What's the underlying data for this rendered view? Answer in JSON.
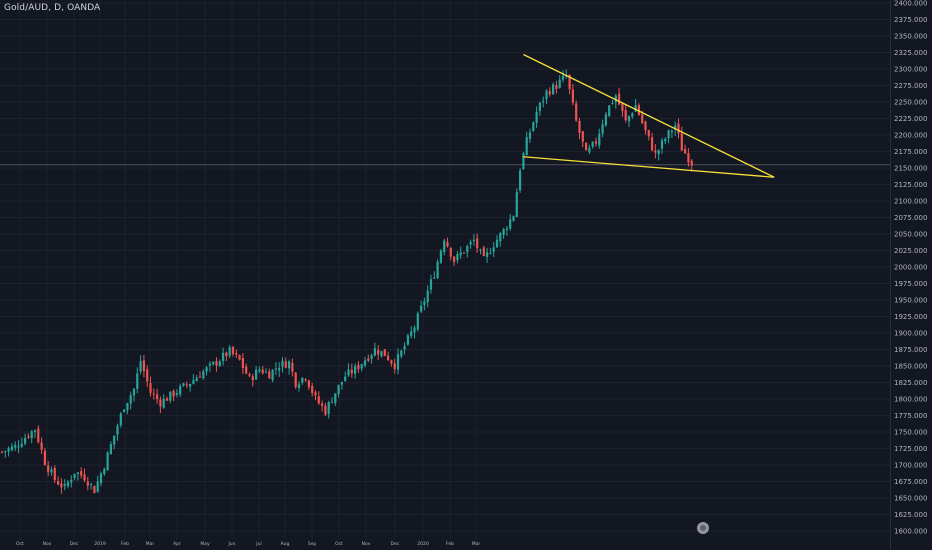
{
  "header": {
    "symbol_title": "Gold/AUD, D, OANDA"
  },
  "colors": {
    "background": "#131722",
    "grid": "#1e222d",
    "up": "#26a69a",
    "down": "#ef5350",
    "trendline": "#f5e13a",
    "axis_text": "#b2b5be",
    "crosshair": "#4c525e"
  },
  "chart_data": {
    "type": "candlestick",
    "title": "Gold/AUD, D, OANDA",
    "ylim": [
      1600,
      2400
    ],
    "y_ticks": [
      "2400.000",
      "2375.000",
      "2350.000",
      "2325.000",
      "2300.000",
      "2275.000",
      "2250.000",
      "2225.000",
      "2200.000",
      "2175.000",
      "2150.000",
      "2125.000",
      "2100.000",
      "2075.000",
      "2050.000",
      "2025.000",
      "2000.000",
      "1975.000",
      "1950.000",
      "1925.000",
      "1900.000",
      "1875.000",
      "1850.000",
      "1825.000",
      "1800.000",
      "1775.000",
      "1750.000",
      "1725.000",
      "1700.000",
      "1675.000",
      "1650.000",
      "1625.000",
      "1600.000"
    ],
    "x_ticks": [
      "Oct",
      "Nov",
      "Dec",
      "2019",
      "Feb",
      "Mar",
      "Apr",
      "May",
      "Jun",
      "Jul",
      "Aug",
      "Sep",
      "Oct",
      "Nov",
      "Dec",
      "2020",
      "Feb",
      "Mar"
    ],
    "grid": true,
    "horizontal_reference": 2155,
    "close_anchors": [
      [
        0,
        1720
      ],
      [
        4,
        1728
      ],
      [
        7,
        1742
      ],
      [
        10,
        1755
      ],
      [
        13,
        1705
      ],
      [
        16,
        1678
      ],
      [
        19,
        1665
      ],
      [
        22,
        1690
      ],
      [
        25,
        1682
      ],
      [
        28,
        1662
      ],
      [
        31,
        1700
      ],
      [
        34,
        1745
      ],
      [
        37,
        1790
      ],
      [
        40,
        1815
      ],
      [
        42,
        1858
      ],
      [
        45,
        1810
      ],
      [
        48,
        1795
      ],
      [
        51,
        1805
      ],
      [
        54,
        1815
      ],
      [
        57,
        1825
      ],
      [
        60,
        1838
      ],
      [
        63,
        1848
      ],
      [
        66,
        1860
      ],
      [
        69,
        1872
      ],
      [
        72,
        1858
      ],
      [
        75,
        1830
      ],
      [
        78,
        1845
      ],
      [
        81,
        1838
      ],
      [
        84,
        1852
      ],
      [
        87,
        1855
      ],
      [
        89,
        1825
      ],
      [
        92,
        1835
      ],
      [
        95,
        1800
      ],
      [
        98,
        1782
      ],
      [
        101,
        1810
      ],
      [
        104,
        1835
      ],
      [
        107,
        1845
      ],
      [
        110,
        1860
      ],
      [
        113,
        1875
      ],
      [
        116,
        1868
      ],
      [
        119,
        1852
      ],
      [
        122,
        1880
      ],
      [
        125,
        1910
      ],
      [
        128,
        1950
      ],
      [
        131,
        1990
      ],
      [
        134,
        2045
      ],
      [
        137,
        2010
      ],
      [
        140,
        2025
      ],
      [
        143,
        2040
      ],
      [
        146,
        2010
      ],
      [
        149,
        2035
      ],
      [
        152,
        2055
      ],
      [
        155,
        2080
      ],
      [
        157,
        2150
      ],
      [
        159,
        2190
      ],
      [
        162,
        2235
      ],
      [
        165,
        2265
      ],
      [
        168,
        2275
      ],
      [
        171,
        2290
      ],
      [
        174,
        2220
      ],
      [
        177,
        2170
      ],
      [
        180,
        2190
      ],
      [
        183,
        2235
      ],
      [
        186,
        2260
      ],
      [
        189,
        2220
      ],
      [
        192,
        2245
      ],
      [
        195,
        2205
      ],
      [
        198,
        2170
      ],
      [
        201,
        2195
      ],
      [
        204,
        2215
      ],
      [
        206,
        2180
      ],
      [
        209,
        2158
      ]
    ],
    "trendlines": [
      {
        "name": "upper",
        "start": [
          158,
          2322
        ],
        "end": [
          234,
          2136
        ]
      },
      {
        "name": "lower",
        "start": [
          158,
          2167
        ],
        "end": [
          234,
          2136
        ]
      }
    ]
  }
}
